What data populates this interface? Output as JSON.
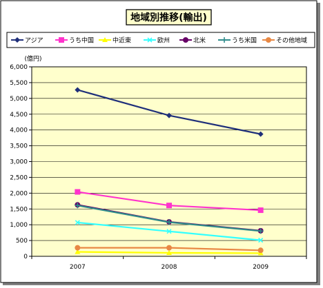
{
  "chart_data": {
    "type": "line",
    "title": "地域別推移(輸出)",
    "ylabel": "(億円)",
    "xlabel": "",
    "ylim": [
      0,
      6000
    ],
    "yticks": [
      0,
      500,
      1000,
      1500,
      2000,
      2500,
      3000,
      3500,
      4000,
      4500,
      5000,
      5500,
      6000
    ],
    "ytick_labels": [
      "0",
      "500",
      "1,000",
      "1,500",
      "2,000",
      "2,500",
      "3,000",
      "3,500",
      "4,000",
      "4,500",
      "5,000",
      "5,500",
      "6,000"
    ],
    "categories": [
      "2007",
      "2008",
      "2009"
    ],
    "grid": true,
    "legend_position": "top",
    "series": [
      {
        "name": "アジア",
        "values": [
          5270,
          4460,
          3870
        ],
        "color": "#1f2f7a",
        "marker": "diamond"
      },
      {
        "name": "うち中国",
        "values": [
          2040,
          1610,
          1460
        ],
        "color": "#ff33cc",
        "marker": "square"
      },
      {
        "name": "中近東",
        "values": [
          140,
          110,
          100
        ],
        "color": "#ffff00",
        "marker": "triangle"
      },
      {
        "name": "欧州",
        "values": [
          1070,
          790,
          510
        ],
        "color": "#33ffff",
        "marker": "x"
      },
      {
        "name": "北米",
        "values": [
          1630,
          1090,
          810
        ],
        "color": "#660066",
        "marker": "circle"
      },
      {
        "name": "うち米国",
        "values": [
          1610,
          1080,
          800
        ],
        "color": "#2e8b8b",
        "marker": "plus"
      },
      {
        "name": "その他地域",
        "values": [
          270,
          270,
          190
        ],
        "color": "#e88844",
        "marker": "circle"
      }
    ]
  }
}
